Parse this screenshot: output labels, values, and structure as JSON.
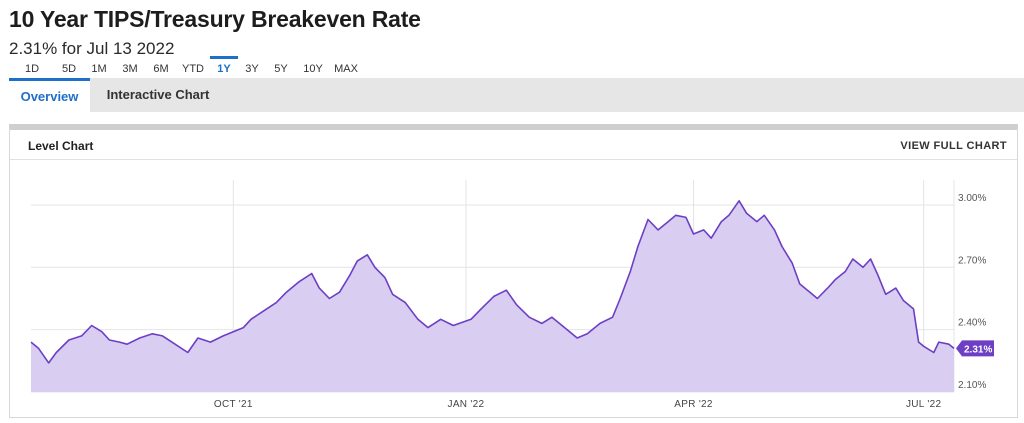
{
  "header": {
    "title": "10 Year TIPS/Treasury Breakeven Rate",
    "subtitle": "2.31% for Jul 13 2022"
  },
  "tabs": [
    {
      "label": "Overview",
      "active": true
    },
    {
      "label": "Interactive Chart",
      "active": false
    }
  ],
  "card": {
    "title": "Level Chart",
    "full_chart_label": "VIEW FULL CHART"
  },
  "ranges": [
    {
      "label": "1D",
      "active": false
    },
    {
      "label": "5D",
      "active": false
    },
    {
      "label": "1M",
      "active": false
    },
    {
      "label": "3M",
      "active": false
    },
    {
      "label": "6M",
      "active": false
    },
    {
      "label": "YTD",
      "active": false
    },
    {
      "label": "1Y",
      "active": true
    },
    {
      "label": "3Y",
      "active": false
    },
    {
      "label": "5Y",
      "active": false
    },
    {
      "label": "10Y",
      "active": false
    },
    {
      "label": "MAX",
      "active": false
    }
  ],
  "colors": {
    "line": "#6c3fc4",
    "fill": "#d9cdf2",
    "accent": "#1e6fc7",
    "badge": "#6c3fc4"
  },
  "chart_data": {
    "type": "area",
    "x_range": [
      "2021-07-13",
      "2022-07-13"
    ],
    "ylim": [
      2.1,
      3.12
    ],
    "y_ticks": [
      {
        "value": 2.1,
        "label": "2.10%"
      },
      {
        "value": 2.4,
        "label": "2.40%"
      },
      {
        "value": 2.7,
        "label": "2.70%"
      },
      {
        "value": 3.0,
        "label": "3.00%"
      }
    ],
    "x_ticks": [
      {
        "date": "2021-10-01",
        "label": "OCT '21"
      },
      {
        "date": "2022-01-01",
        "label": "JAN '22"
      },
      {
        "date": "2022-04-01",
        "label": "APR '22"
      },
      {
        "date": "2022-07-01",
        "label": "JUL '22"
      }
    ],
    "last_value_label": "2.31%",
    "series": [
      {
        "points": [
          [
            "2021-07-13",
            2.34
          ],
          [
            "2021-07-16",
            2.31
          ],
          [
            "2021-07-20",
            2.24
          ],
          [
            "2021-07-23",
            2.29
          ],
          [
            "2021-07-28",
            2.35
          ],
          [
            "2021-08-02",
            2.37
          ],
          [
            "2021-08-06",
            2.42
          ],
          [
            "2021-08-10",
            2.39
          ],
          [
            "2021-08-13",
            2.35
          ],
          [
            "2021-08-17",
            2.34
          ],
          [
            "2021-08-20",
            2.33
          ],
          [
            "2021-08-25",
            2.36
          ],
          [
            "2021-08-30",
            2.38
          ],
          [
            "2021-09-03",
            2.37
          ],
          [
            "2021-09-08",
            2.33
          ],
          [
            "2021-09-13",
            2.29
          ],
          [
            "2021-09-17",
            2.36
          ],
          [
            "2021-09-22",
            2.34
          ],
          [
            "2021-09-27",
            2.37
          ],
          [
            "2021-10-01",
            2.39
          ],
          [
            "2021-10-05",
            2.41
          ],
          [
            "2021-10-08",
            2.45
          ],
          [
            "2021-10-13",
            2.49
          ],
          [
            "2021-10-18",
            2.53
          ],
          [
            "2021-10-22",
            2.58
          ],
          [
            "2021-10-27",
            2.63
          ],
          [
            "2021-11-01",
            2.67
          ],
          [
            "2021-11-04",
            2.6
          ],
          [
            "2021-11-08",
            2.55
          ],
          [
            "2021-11-12",
            2.58
          ],
          [
            "2021-11-16",
            2.66
          ],
          [
            "2021-11-19",
            2.73
          ],
          [
            "2021-11-23",
            2.76
          ],
          [
            "2021-11-26",
            2.7
          ],
          [
            "2021-11-30",
            2.65
          ],
          [
            "2021-12-03",
            2.57
          ],
          [
            "2021-12-08",
            2.53
          ],
          [
            "2021-12-13",
            2.45
          ],
          [
            "2021-12-17",
            2.41
          ],
          [
            "2021-12-22",
            2.45
          ],
          [
            "2021-12-27",
            2.42
          ],
          [
            "2022-01-03",
            2.45
          ],
          [
            "2022-01-07",
            2.5
          ],
          [
            "2022-01-12",
            2.56
          ],
          [
            "2022-01-17",
            2.59
          ],
          [
            "2022-01-21",
            2.52
          ],
          [
            "2022-01-26",
            2.46
          ],
          [
            "2022-01-31",
            2.43
          ],
          [
            "2022-02-04",
            2.46
          ],
          [
            "2022-02-09",
            2.41
          ],
          [
            "2022-02-14",
            2.36
          ],
          [
            "2022-02-18",
            2.38
          ],
          [
            "2022-02-23",
            2.43
          ],
          [
            "2022-02-28",
            2.46
          ],
          [
            "2022-03-03",
            2.55
          ],
          [
            "2022-03-07",
            2.68
          ],
          [
            "2022-03-10",
            2.8
          ],
          [
            "2022-03-14",
            2.93
          ],
          [
            "2022-03-18",
            2.88
          ],
          [
            "2022-03-22",
            2.92
          ],
          [
            "2022-03-25",
            2.95
          ],
          [
            "2022-03-29",
            2.94
          ],
          [
            "2022-04-01",
            2.86
          ],
          [
            "2022-04-05",
            2.88
          ],
          [
            "2022-04-08",
            2.84
          ],
          [
            "2022-04-12",
            2.92
          ],
          [
            "2022-04-15",
            2.95
          ],
          [
            "2022-04-19",
            3.02
          ],
          [
            "2022-04-22",
            2.96
          ],
          [
            "2022-04-26",
            2.92
          ],
          [
            "2022-04-29",
            2.95
          ],
          [
            "2022-05-03",
            2.88
          ],
          [
            "2022-05-06",
            2.8
          ],
          [
            "2022-05-10",
            2.72
          ],
          [
            "2022-05-13",
            2.62
          ],
          [
            "2022-05-17",
            2.58
          ],
          [
            "2022-05-20",
            2.55
          ],
          [
            "2022-05-24",
            2.6
          ],
          [
            "2022-05-27",
            2.64
          ],
          [
            "2022-05-31",
            2.68
          ],
          [
            "2022-06-03",
            2.74
          ],
          [
            "2022-06-07",
            2.7
          ],
          [
            "2022-06-10",
            2.74
          ],
          [
            "2022-06-13",
            2.66
          ],
          [
            "2022-06-16",
            2.57
          ],
          [
            "2022-06-20",
            2.6
          ],
          [
            "2022-06-23",
            2.54
          ],
          [
            "2022-06-27",
            2.5
          ],
          [
            "2022-06-29",
            2.34
          ],
          [
            "2022-07-01",
            2.32
          ],
          [
            "2022-07-05",
            2.29
          ],
          [
            "2022-07-07",
            2.34
          ],
          [
            "2022-07-11",
            2.33
          ],
          [
            "2022-07-13",
            2.31
          ]
        ]
      }
    ]
  }
}
